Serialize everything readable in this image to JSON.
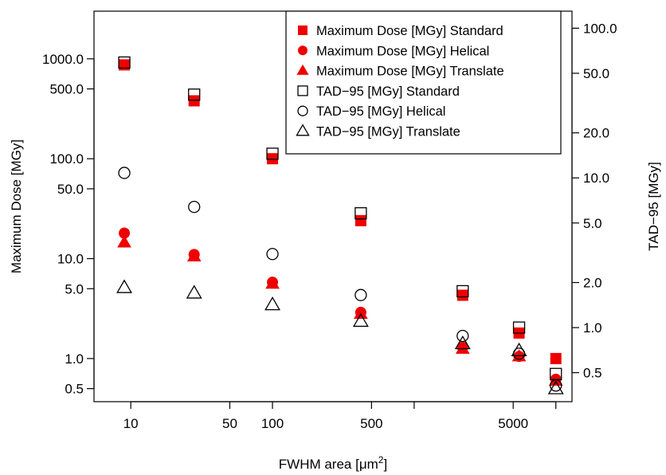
{
  "chart_data": {
    "type": "scatter",
    "x_scale": "log",
    "y_scale": "log",
    "y2_scale": "log",
    "xlabel": "FWHM area [μm²]",
    "xlabel_prefix": "FWHM area [",
    "xlabel_unit": "μm",
    "xlabel_sup": "2",
    "xlabel_suffix": "]",
    "ylabel": "Maximum Dose [MGy]",
    "y2label": "TAD−95 [MGy]",
    "xlim": [
      5.5,
      13000
    ],
    "ylim": [
      0.37,
      3000
    ],
    "y2lim": [
      0.32,
      130
    ],
    "x_ticks": [
      10,
      50,
      100,
      500,
      1000,
      5000,
      10000
    ],
    "x_tick_labels": [
      "10",
      "50",
      "100",
      "500",
      "",
      "5000",
      ""
    ],
    "y_ticks": [
      0.5,
      1.0,
      5.0,
      10.0,
      50.0,
      100.0,
      500.0,
      1000.0
    ],
    "y_tick_labels": [
      "0.5",
      "1.0",
      "5.0",
      "10.0",
      "50.0",
      "100.0",
      "500.0",
      "1000.0"
    ],
    "y2_ticks": [
      0.5,
      1.0,
      2.0,
      5.0,
      10.0,
      20.0,
      50.0,
      100.0
    ],
    "y2_tick_labels": [
      "0.5",
      "1.0",
      "2.0",
      "5.0",
      "10.0",
      "20.0",
      "50.0",
      "100.0"
    ],
    "grid": false,
    "legend_position": "top-right",
    "x": [
      9,
      28,
      100,
      420,
      2200,
      5500,
      10000
    ],
    "series": [
      {
        "name": "Maximum Dose [MGy] Standard",
        "axis": "left",
        "marker": "square",
        "filled": true,
        "color": "#ee0000",
        "values": [
          870,
          380,
          100,
          24,
          4.3,
          1.8,
          1.0
        ]
      },
      {
        "name": "Maximum Dose [MGy] Helical",
        "axis": "left",
        "marker": "circle",
        "filled": true,
        "color": "#ee0000",
        "values": [
          18,
          11,
          5.8,
          2.9,
          1.3,
          1.05,
          0.62
        ]
      },
      {
        "name": "Maximum Dose [MGy] Translate",
        "axis": "left",
        "marker": "triangle",
        "filled": true,
        "color": "#ee0000",
        "values": [
          14.5,
          10.5,
          5.6,
          2.8,
          1.25,
          1.05,
          0.6
        ]
      },
      {
        "name": "TAD−95 [MGy] Standard",
        "axis": "right",
        "marker": "square",
        "filled": false,
        "color": "#000000",
        "values": [
          59,
          36,
          14.5,
          5.8,
          1.75,
          1.0,
          0.49
        ]
      },
      {
        "name": "TAD−95 [MGy] Helical",
        "axis": "right",
        "marker": "circle",
        "filled": false,
        "color": "#000000",
        "values": [
          10.8,
          6.4,
          3.1,
          1.65,
          0.88,
          0.67,
          0.41
        ]
      },
      {
        "name": "TAD−95 [MGy] Translate",
        "axis": "right",
        "marker": "triangle",
        "filled": false,
        "color": "#000000",
        "values": [
          1.85,
          1.7,
          1.42,
          1.1,
          0.78,
          0.7,
          0.39
        ]
      }
    ]
  }
}
